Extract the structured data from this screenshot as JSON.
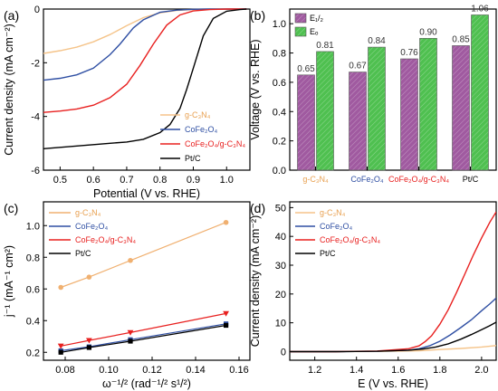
{
  "chart_data": [
    {
      "panel_label": "(a)",
      "type": "line",
      "xlabel": "Potential (V vs. RHE)",
      "ylabel": "Current density (mA cm⁻²)",
      "xlim": [
        0.45,
        1.07
      ],
      "ylim": [
        -6,
        0
      ],
      "xticks": [
        "0.5",
        "0.6",
        "0.7",
        "0.8",
        "0.9",
        "1.0"
      ],
      "xtick_values": [
        0.5,
        0.6,
        0.7,
        0.8,
        0.9,
        1.0
      ],
      "yticks": [
        "0",
        "-2",
        "-4",
        "-6"
      ],
      "ytick_values": [
        0,
        -2,
        -4,
        -6
      ],
      "legend_position": "bottom-right",
      "series": [
        {
          "name": "g-C₃N₄",
          "color": "#f5c48a",
          "x": [
            0.45,
            0.5,
            0.55,
            0.6,
            0.65,
            0.7,
            0.75,
            0.8,
            0.85,
            0.9,
            0.95,
            1.0,
            1.04,
            1.06
          ],
          "y": [
            -1.65,
            -1.55,
            -1.42,
            -1.22,
            -0.95,
            -0.62,
            -0.32,
            -0.14,
            -0.05,
            -0.02,
            -0.01,
            0,
            0,
            0
          ]
        },
        {
          "name": "CoFe₂O₄",
          "color": "#2f4fa3",
          "x": [
            0.45,
            0.5,
            0.55,
            0.6,
            0.65,
            0.68,
            0.72,
            0.75,
            0.8,
            0.85,
            0.9,
            0.95,
            1.0,
            1.06
          ],
          "y": [
            -2.65,
            -2.58,
            -2.45,
            -2.2,
            -1.7,
            -1.3,
            -0.7,
            -0.4,
            -0.12,
            -0.04,
            -0.01,
            0,
            0,
            0
          ]
        },
        {
          "name": "CoFe₂O₄/g-C₃N₄",
          "color": "#e8201f",
          "x": [
            0.45,
            0.5,
            0.55,
            0.6,
            0.65,
            0.7,
            0.74,
            0.78,
            0.82,
            0.86,
            0.9,
            0.95,
            1.0,
            1.06
          ],
          "y": [
            -3.85,
            -3.8,
            -3.72,
            -3.58,
            -3.3,
            -2.8,
            -2.1,
            -1.3,
            -0.6,
            -0.22,
            -0.07,
            -0.02,
            0,
            0
          ]
        },
        {
          "name": "Pt/C",
          "color": "#000000",
          "x": [
            0.45,
            0.5,
            0.55,
            0.6,
            0.65,
            0.7,
            0.75,
            0.8,
            0.83,
            0.86,
            0.88,
            0.9,
            0.93,
            0.96,
            1.0,
            1.04,
            1.06
          ],
          "y": [
            -5.2,
            -5.15,
            -5.1,
            -5.05,
            -5.0,
            -4.95,
            -4.85,
            -4.6,
            -4.3,
            -3.7,
            -3.0,
            -2.2,
            -1.0,
            -0.35,
            -0.08,
            -0.02,
            0
          ]
        }
      ]
    },
    {
      "panel_label": "(b)",
      "type": "bar",
      "ylabel": "Voltage (V vs. RHE)",
      "ylim": [
        0,
        1.1
      ],
      "yticks": [
        "0.0",
        "0.2",
        "0.4",
        "0.6",
        "0.8",
        "1.0"
      ],
      "ytick_values": [
        0,
        0.2,
        0.4,
        0.6,
        0.8,
        1.0
      ],
      "categories": [
        "g-C₃N₄",
        "CoFe₂O₄",
        "CoFe₂O₄/g-C₃N₄",
        "Pt/C"
      ],
      "category_colors": [
        "#e8a050",
        "#2f4fa3",
        "#e8201f",
        "#000000"
      ],
      "legend_position": "top-left",
      "series": [
        {
          "name": "E₁/₂",
          "color": "#a05aa0",
          "values": [
            0.65,
            0.67,
            0.76,
            0.85
          ],
          "labels": [
            "0.65",
            "0.67",
            "0.76",
            "0.85"
          ]
        },
        {
          "name": "Eₒ",
          "color": "#4fc050",
          "values": [
            0.81,
            0.84,
            0.9,
            1.06
          ],
          "labels": [
            "0.81",
            "0.84",
            "0.90",
            "1.06"
          ]
        }
      ]
    },
    {
      "panel_label": "(c)",
      "type": "scatter",
      "xlabel": "ω⁻¹/² (rad⁻¹/² s¹/²)",
      "ylabel": "j⁻¹ (mA⁻¹ cm²)",
      "xlim": [
        0.07,
        0.165
      ],
      "ylim": [
        0.15,
        1.15
      ],
      "xticks": [
        "0.08",
        "0.10",
        "0.12",
        "0.14",
        "0.16"
      ],
      "xtick_values": [
        0.08,
        0.1,
        0.12,
        0.14,
        0.16
      ],
      "yticks": [
        "0.2",
        "0.4",
        "0.6",
        "0.8",
        "1.0"
      ],
      "ytick_values": [
        0.2,
        0.4,
        0.6,
        0.8,
        1.0
      ],
      "x": [
        0.078,
        0.091,
        0.11,
        0.154
      ],
      "legend_position": "top-left",
      "series": [
        {
          "name": "g-C₃N₄",
          "color": "#f0b070",
          "marker": "circle",
          "values": [
            0.61,
            0.675,
            0.78,
            1.02
          ]
        },
        {
          "name": "CoFe₂O₄",
          "color": "#2f4fa3",
          "marker": "square",
          "values": [
            0.21,
            0.235,
            0.28,
            0.38
          ]
        },
        {
          "name": "CoFe₂O₄/g-C₃N₄",
          "color": "#e8201f",
          "marker": "triangle-down",
          "values": [
            0.24,
            0.275,
            0.325,
            0.445
          ]
        },
        {
          "name": "Pt/C",
          "color": "#000000",
          "marker": "square",
          "values": [
            0.2,
            0.23,
            0.27,
            0.37
          ]
        }
      ]
    },
    {
      "panel_label": "(d)",
      "type": "line",
      "xlabel": "E (V vs. RHE)",
      "ylabel": "Current density (mA cm⁻²)",
      "xlim": [
        1.08,
        2.07
      ],
      "ylim": [
        -3,
        52
      ],
      "xticks": [
        "1.2",
        "1.4",
        "1.6",
        "1.8",
        "2.0"
      ],
      "xtick_values": [
        1.2,
        1.4,
        1.6,
        1.8,
        2.0
      ],
      "yticks": [
        "0",
        "10",
        "20",
        "30",
        "40",
        "50"
      ],
      "ytick_values": [
        0,
        10,
        20,
        30,
        40,
        50
      ],
      "legend_position": "top-left",
      "series": [
        {
          "name": "g-C₃N₄",
          "color": "#f5c48a",
          "x": [
            1.08,
            1.3,
            1.5,
            1.7,
            1.8,
            1.9,
            2.0,
            2.07
          ],
          "y": [
            0,
            0,
            0.05,
            0.3,
            0.7,
            1.1,
            1.6,
            2.1
          ]
        },
        {
          "name": "CoFe₂O₄",
          "color": "#2f4fa3",
          "x": [
            1.08,
            1.3,
            1.5,
            1.65,
            1.7,
            1.75,
            1.8,
            1.85,
            1.9,
            1.95,
            2.0,
            2.04,
            2.07
          ],
          "y": [
            0,
            0,
            0.1,
            0.5,
            1.0,
            2.0,
            3.6,
            5.8,
            8.3,
            11.0,
            14.2,
            16.6,
            18.6
          ]
        },
        {
          "name": "CoFe₂O₄/g-C₃N₄",
          "color": "#e8201f",
          "x": [
            1.08,
            1.3,
            1.5,
            1.65,
            1.7,
            1.73,
            1.76,
            1.8,
            1.84,
            1.88,
            1.92,
            1.96,
            2.0,
            2.04,
            2.07
          ],
          "y": [
            0,
            0,
            0.2,
            1.0,
            2.0,
            3.5,
            5.5,
            9.5,
            14.5,
            20.5,
            27.0,
            33.5,
            39.5,
            45.0,
            48.5
          ]
        },
        {
          "name": "Pt/C",
          "color": "#000000",
          "x": [
            1.08,
            1.3,
            1.5,
            1.65,
            1.72,
            1.78,
            1.84,
            1.9,
            1.95,
            2.0,
            2.04,
            2.07
          ],
          "y": [
            0,
            0,
            0.1,
            0.5,
            0.9,
            1.6,
            2.7,
            4.3,
            5.9,
            7.6,
            9.0,
            10.2
          ]
        }
      ]
    }
  ]
}
